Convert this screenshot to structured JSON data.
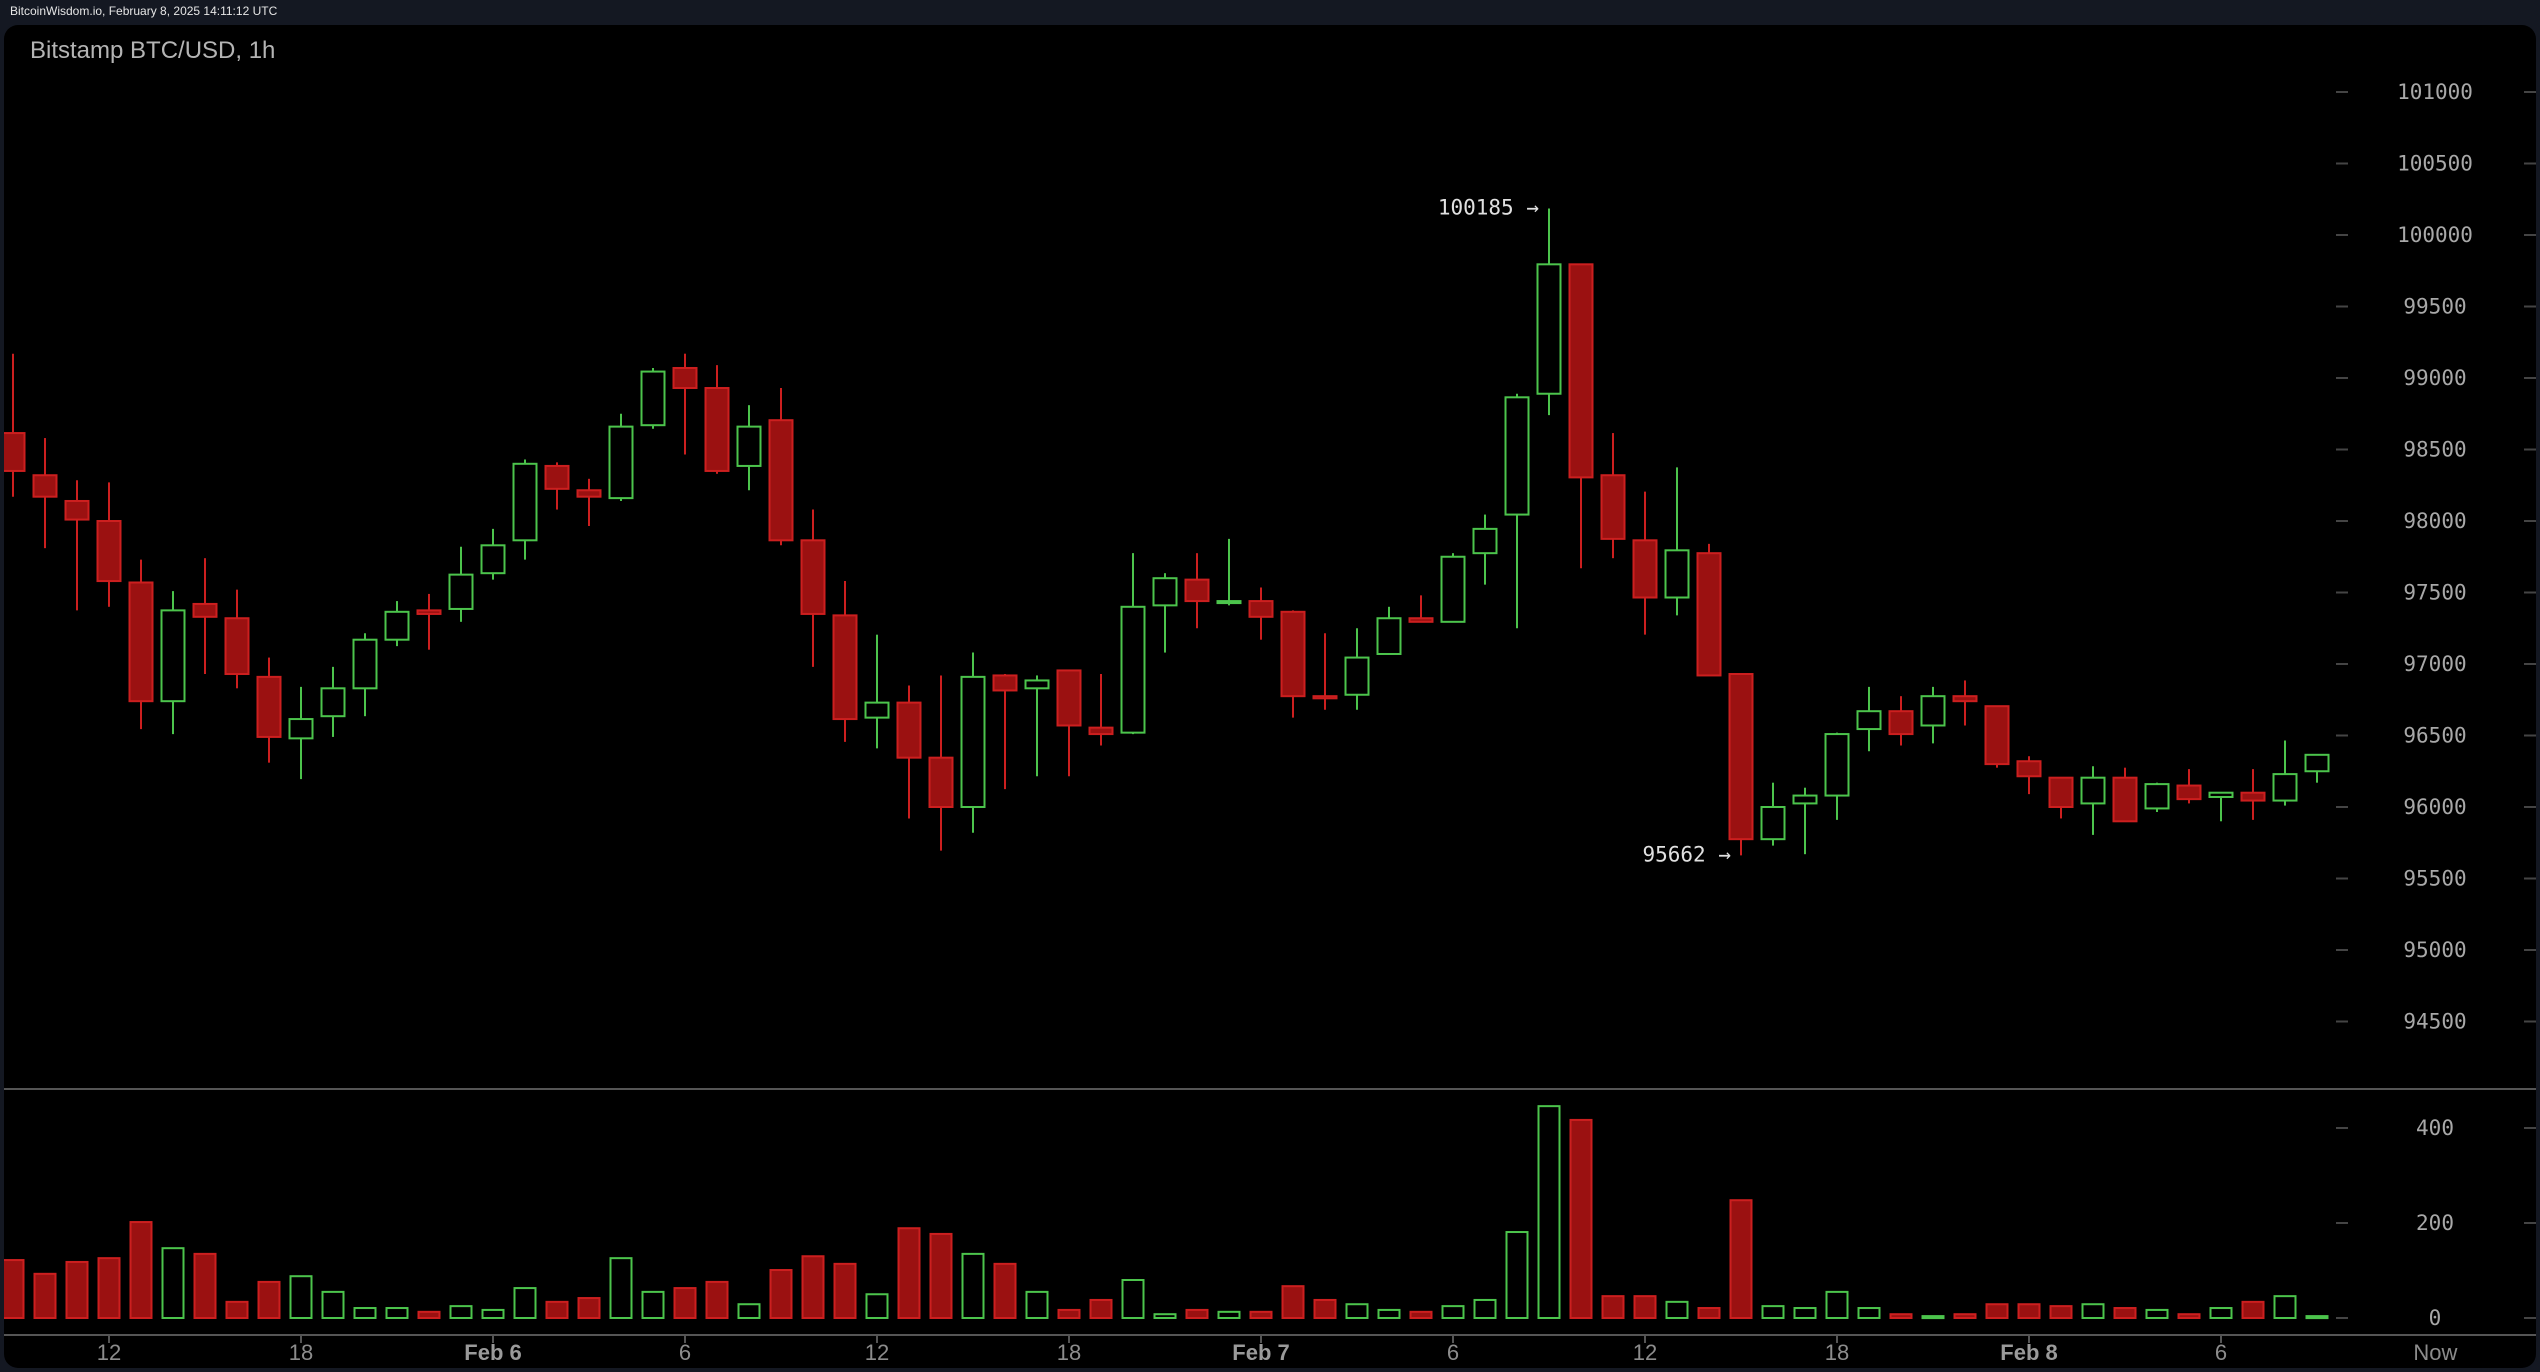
{
  "header": {
    "source": "BitcoinWisdom.io, February 8, 2025 14:11:12 UTC"
  },
  "chart": {
    "title": "Bitstamp BTC/USD, 1h"
  },
  "colors": {
    "up": "#4cc44c",
    "down_fill": "#9b1111",
    "down_border": "#cc1f1f",
    "axis": "#444444",
    "background": "#000000"
  },
  "chart_data": {
    "type": "candlestick",
    "title": "Bitstamp BTC/USD, 1h",
    "price_axis": {
      "ticks": [
        101000,
        100500,
        100000,
        99500,
        99000,
        98500,
        98000,
        97500,
        97000,
        96500,
        96000,
        95500,
        95000,
        94500
      ]
    },
    "volume_axis": {
      "ticks": [
        400,
        200,
        0
      ]
    },
    "x_labels": [
      {
        "index": 3,
        "label": "12",
        "day": false
      },
      {
        "index": 9,
        "label": "18",
        "day": false
      },
      {
        "index": 15,
        "label": "Feb 6",
        "day": true
      },
      {
        "index": 21,
        "label": "6",
        "day": false
      },
      {
        "index": 27,
        "label": "12",
        "day": false
      },
      {
        "index": 33,
        "label": "18",
        "day": false
      },
      {
        "index": 39,
        "label": "Feb 7",
        "day": true
      },
      {
        "index": 45,
        "label": "6",
        "day": false
      },
      {
        "index": 51,
        "label": "12",
        "day": false
      },
      {
        "index": 57,
        "label": "18",
        "day": false
      },
      {
        "index": 63,
        "label": "Feb 8",
        "day": true
      },
      {
        "index": 69,
        "label": "6",
        "day": false
      },
      {
        "index": 75.7,
        "label": "Now",
        "day": false
      }
    ],
    "annotations": [
      {
        "index": 48,
        "price": 100185,
        "label": "100185 →",
        "pos": "high"
      },
      {
        "index": 54,
        "price": 95662,
        "label": "95662 →",
        "pos": "low"
      }
    ],
    "ohlc": [
      [
        98615,
        99170,
        98170,
        98350
      ],
      [
        98320,
        98580,
        97810,
        98170
      ],
      [
        98140,
        98285,
        97375,
        98010
      ],
      [
        98000,
        98270,
        97400,
        97580
      ],
      [
        97570,
        97730,
        96545,
        96740
      ],
      [
        96740,
        97510,
        96510,
        97375
      ],
      [
        97420,
        97740,
        96930,
        97330
      ],
      [
        97320,
        97520,
        96830,
        96930
      ],
      [
        96910,
        97045,
        96310,
        96490
      ],
      [
        96480,
        96840,
        96195,
        96615
      ],
      [
        96635,
        96980,
        96490,
        96830
      ],
      [
        96830,
        97215,
        96635,
        97170
      ],
      [
        97170,
        97440,
        97125,
        97365
      ],
      [
        97375,
        97490,
        97100,
        97350
      ],
      [
        97385,
        97820,
        97295,
        97625
      ],
      [
        97635,
        97945,
        97590,
        97830
      ],
      [
        97865,
        98430,
        97730,
        98400
      ],
      [
        98385,
        98410,
        98080,
        98225
      ],
      [
        98215,
        98295,
        97965,
        98170
      ],
      [
        98160,
        98750,
        98140,
        98660
      ],
      [
        98670,
        99070,
        98645,
        99045
      ],
      [
        99070,
        99170,
        98465,
        98930
      ],
      [
        98930,
        99090,
        98330,
        98350
      ],
      [
        98385,
        98810,
        98215,
        98660
      ],
      [
        98705,
        98930,
        97830,
        97865
      ],
      [
        97865,
        98080,
        96980,
        97350
      ],
      [
        97340,
        97580,
        96455,
        96615
      ],
      [
        96625,
        97205,
        96410,
        96730
      ],
      [
        96730,
        96850,
        95920,
        96345
      ],
      [
        96345,
        96920,
        95695,
        96000
      ],
      [
        96000,
        97080,
        95820,
        96910
      ],
      [
        96920,
        96930,
        96125,
        96815
      ],
      [
        96830,
        96920,
        96215,
        96885
      ],
      [
        96955,
        96920,
        96215,
        96570
      ],
      [
        96555,
        96930,
        96430,
        96510
      ],
      [
        96520,
        97775,
        96510,
        97400
      ],
      [
        97410,
        97635,
        97080,
        97600
      ],
      [
        97590,
        97775,
        97250,
        97440
      ],
      [
        97430,
        97875,
        97410,
        97440
      ],
      [
        97440,
        97535,
        97170,
        97330
      ],
      [
        97365,
        97375,
        96625,
        96775
      ],
      [
        96775,
        97215,
        96680,
        96760
      ],
      [
        96785,
        97250,
        96680,
        97045
      ],
      [
        97070,
        97400,
        97080,
        97320
      ],
      [
        97320,
        97480,
        97295,
        97295
      ],
      [
        97295,
        97775,
        97295,
        97750
      ],
      [
        97775,
        98045,
        97555,
        97945
      ],
      [
        98045,
        98890,
        97250,
        98865
      ],
      [
        98890,
        100185,
        98740,
        99795
      ],
      [
        99795,
        99795,
        97670,
        98305
      ],
      [
        98320,
        98615,
        97740,
        97875
      ],
      [
        97865,
        98205,
        97205,
        97465
      ],
      [
        97465,
        98375,
        97340,
        97795
      ],
      [
        97775,
        97840,
        96920,
        96920
      ],
      [
        96930,
        96930,
        95662,
        95775
      ],
      [
        95775,
        96170,
        95730,
        96000
      ],
      [
        96025,
        96135,
        95670,
        96080
      ],
      [
        96080,
        96520,
        95910,
        96510
      ],
      [
        96545,
        96840,
        96390,
        96670
      ],
      [
        96670,
        96775,
        96430,
        96510
      ],
      [
        96570,
        96840,
        96445,
        96775
      ],
      [
        96775,
        96885,
        96570,
        96740
      ],
      [
        96705,
        96705,
        96275,
        96300
      ],
      [
        96320,
        96355,
        96090,
        96215
      ],
      [
        96205,
        96205,
        95920,
        96000
      ],
      [
        96025,
        96285,
        95805,
        96205
      ],
      [
        96205,
        96275,
        95900,
        95900
      ],
      [
        95990,
        96170,
        95965,
        96160
      ],
      [
        96150,
        96265,
        96025,
        96055
      ],
      [
        96070,
        96100,
        95900,
        96100
      ],
      [
        96100,
        96265,
        95910,
        96045
      ],
      [
        96045,
        96465,
        96010,
        96230
      ],
      [
        96250,
        96365,
        96170,
        96365
      ]
    ],
    "volume": [
      122,
      93,
      118,
      126,
      202,
      147,
      135,
      34,
      76,
      88,
      55,
      21,
      21,
      13,
      25,
      17,
      63,
      34,
      42,
      126,
      55,
      63,
      76,
      29,
      101,
      130,
      114,
      50,
      189,
      177,
      135,
      114,
      55,
      17,
      38,
      80,
      8,
      17,
      13,
      13,
      67,
      38,
      29,
      17,
      13,
      25,
      38,
      181,
      446,
      417,
      46,
      46,
      34,
      21,
      248,
      25,
      21,
      55,
      21,
      8,
      4,
      8,
      29,
      29,
      25,
      29,
      21,
      17,
      8,
      21,
      34,
      46,
      4
    ]
  }
}
